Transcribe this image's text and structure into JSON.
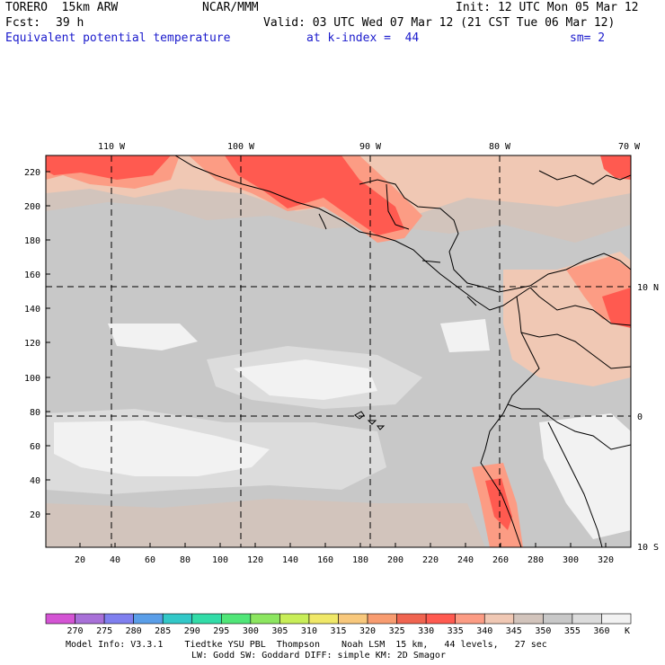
{
  "header": {
    "model": "TORERO  15km ARW",
    "center": "NCAR/MMM",
    "init": "Init: 12 UTC Mon 05 Mar 12",
    "fcst_label": "Fcst:",
    "fcst_hours": "39 h",
    "valid": "Valid: 03 UTC Wed 07 Mar 12 (21 CST Tue 06 Mar 12)",
    "field": "Equivalent potential temperature",
    "level": "at k-index =  44",
    "smooth": "sm= 2"
  },
  "map": {
    "lon_labels": [
      "110 W",
      "100 W",
      "90 W",
      "80 W",
      "70 W"
    ],
    "lat_labels": [
      "10 N",
      "0",
      "10 S"
    ],
    "x_ticks": [
      "20",
      "40",
      "60",
      "80",
      "100",
      "120",
      "140",
      "160",
      "180",
      "200",
      "220",
      "240",
      "260",
      "280",
      "300",
      "320"
    ],
    "y_ticks": [
      "20",
      "40",
      "60",
      "80",
      "100",
      "120",
      "140",
      "160",
      "180",
      "200",
      "220"
    ]
  },
  "colorbar": {
    "labels": [
      "270",
      "275",
      "280",
      "285",
      "290",
      "295",
      "300",
      "305",
      "310",
      "315",
      "320",
      "325",
      "330",
      "335",
      "340",
      "345",
      "350",
      "355",
      "360"
    ],
    "unit": "K",
    "colors": [
      "#d454d4",
      "#a870d8",
      "#7f7fef",
      "#5a9ee8",
      "#32c8c8",
      "#32dca8",
      "#50e678",
      "#8ce660",
      "#c8ee58",
      "#f0e868",
      "#f8c87c",
      "#f89c70",
      "#f06450",
      "#ff5a50",
      "#fc9c84",
      "#f0c8b4",
      "#d2c4bc",
      "#c8c8c8",
      "#dcdcdc",
      "#f2f2f2"
    ]
  },
  "footer": {
    "line1": "Model Info: V3.3.1    Tiedtke YSU PBL  Thompson    Noah LSM  15 km,   44 levels,   27 sec",
    "line2": "LW: Godd SW: Goddard DIFF: simple KM: 2D Smagor"
  }
}
